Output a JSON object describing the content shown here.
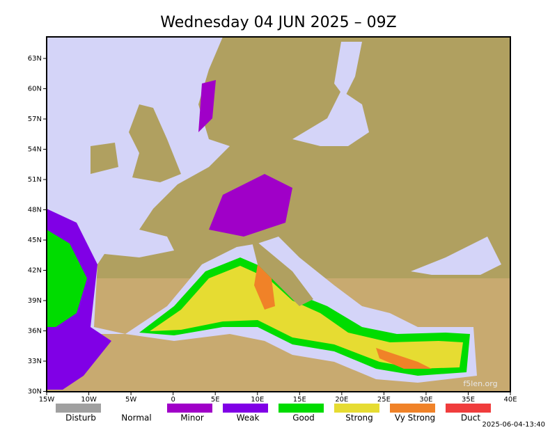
{
  "title": "Wednesday 04 JUN 2025 – 09Z",
  "lat_labels": [
    "63N",
    "60N",
    "57N",
    "54N",
    "51N",
    "48N",
    "45N",
    "42N",
    "39N",
    "36N",
    "33N",
    "30N"
  ],
  "lon_labels": [
    "15W",
    "10W",
    "5W",
    "0",
    "5E",
    "10E",
    "15E",
    "20E",
    "25E",
    "30E",
    "35E",
    "40E"
  ],
  "legend": [
    {
      "label": "Disturb",
      "color": "#a0a0a0"
    },
    {
      "label": "Normal",
      "color": "#ffffff"
    },
    {
      "label": "Minor",
      "color": "#a000c8"
    },
    {
      "label": "Weak",
      "color": "#8000e6"
    },
    {
      "label": "Good",
      "color": "#00dc00"
    },
    {
      "label": "Strong",
      "color": "#e6dc32"
    },
    {
      "label": "Vy Strong",
      "color": "#f08228"
    },
    {
      "label": "Duct",
      "color": "#f03c3c"
    }
  ],
  "timestamp": "2025-06-04-13:40",
  "watermark": "f5len.org"
}
